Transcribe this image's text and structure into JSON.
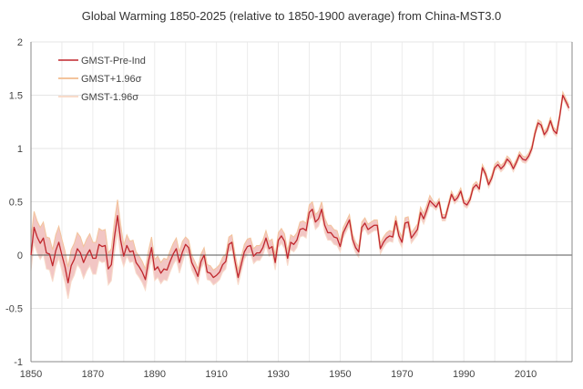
{
  "chart_data": {
    "type": "line",
    "title": "Global Warming 1850-2025 (relative to 1850-1900 average) from China-MST3.0",
    "xlabel": "",
    "ylabel": "",
    "xlim": [
      1850,
      2025
    ],
    "ylim": [
      -1,
      2
    ],
    "x_ticks": [
      "1850",
      "1870",
      "1890",
      "1910",
      "1930",
      "1950",
      "1970",
      "1990",
      "2010"
    ],
    "x_tick_values": [
      1850,
      1870,
      1890,
      1910,
      1930,
      1950,
      1970,
      1990,
      2010
    ],
    "y_ticks": [
      "2",
      "1.5",
      "1",
      "0.5",
      "0",
      "-0.5",
      "-1"
    ],
    "y_tick_values": [
      2,
      1.5,
      1,
      0.5,
      0,
      -0.5,
      -1
    ],
    "grid": true,
    "legend_position": "top-left",
    "x_start": 1850,
    "series": [
      {
        "name": "GMST-Pre-Ind",
        "color": "#c0272d",
        "values": [
          0.0,
          0.26,
          0.17,
          0.11,
          0.16,
          0.02,
          0.01,
          -0.1,
          0.04,
          0.12,
          0.0,
          -0.11,
          -0.26,
          -0.1,
          -0.04,
          0.06,
          0.02,
          -0.07,
          0.0,
          0.05,
          -0.03,
          -0.03,
          0.1,
          0.08,
          0.09,
          -0.13,
          -0.09,
          0.17,
          0.37,
          0.14,
          -0.01,
          0.09,
          0.03,
          0.04,
          -0.07,
          -0.11,
          -0.16,
          -0.23,
          -0.06,
          0.07,
          -0.14,
          -0.11,
          -0.17,
          -0.13,
          -0.14,
          -0.06,
          0.01,
          0.06,
          -0.07,
          0.03,
          0.1,
          0.07,
          -0.07,
          -0.13,
          -0.2,
          -0.06,
          0.0,
          -0.16,
          -0.17,
          -0.21,
          -0.19,
          -0.16,
          -0.09,
          -0.06,
          0.1,
          0.12,
          -0.06,
          -0.21,
          -0.09,
          0.03,
          0.08,
          0.09,
          -0.01,
          0.02,
          0.02,
          0.07,
          0.16,
          0.06,
          0.08,
          -0.07,
          0.14,
          0.18,
          0.13,
          -0.03,
          0.12,
          0.1,
          0.14,
          0.24,
          0.25,
          0.23,
          0.4,
          0.43,
          0.31,
          0.34,
          0.43,
          0.28,
          0.21,
          0.21,
          0.17,
          0.16,
          0.08,
          0.21,
          0.27,
          0.33,
          0.15,
          0.07,
          0.03,
          0.26,
          0.3,
          0.24,
          0.26,
          0.28,
          0.28,
          0.06,
          0.12,
          0.16,
          0.18,
          0.17,
          0.32,
          0.18,
          0.12,
          0.3,
          0.31,
          0.16,
          0.2,
          0.24,
          0.4,
          0.34,
          0.42,
          0.51,
          0.48,
          0.45,
          0.5,
          0.35,
          0.35,
          0.46,
          0.57,
          0.51,
          0.54,
          0.6,
          0.49,
          0.47,
          0.52,
          0.63,
          0.66,
          0.62,
          0.82,
          0.76,
          0.66,
          0.72,
          0.82,
          0.85,
          0.81,
          0.84,
          0.9,
          0.87,
          0.81,
          0.87,
          0.94,
          0.9,
          0.89,
          0.93,
          1.0,
          1.14,
          1.24,
          1.22,
          1.13,
          1.17,
          1.26,
          1.17,
          1.14,
          1.3,
          1.5,
          1.44,
          1.38
        ]
      },
      {
        "name": "GMST+1.96σ",
        "color": "#f3c49c"
      },
      {
        "name": "GMST-1.96σ",
        "color": "#f8dccb"
      }
    ],
    "band_halfwidth_by_period": [
      {
        "from": 1850,
        "to": 1879,
        "value": 0.15
      },
      {
        "from": 1880,
        "to": 1899,
        "value": 0.1
      },
      {
        "from": 1900,
        "to": 1949,
        "value": 0.07
      },
      {
        "from": 1950,
        "to": 1979,
        "value": 0.05
      },
      {
        "from": 1980,
        "to": 2024,
        "value": 0.03
      }
    ],
    "band_fill_color": "#f2c6c4"
  }
}
